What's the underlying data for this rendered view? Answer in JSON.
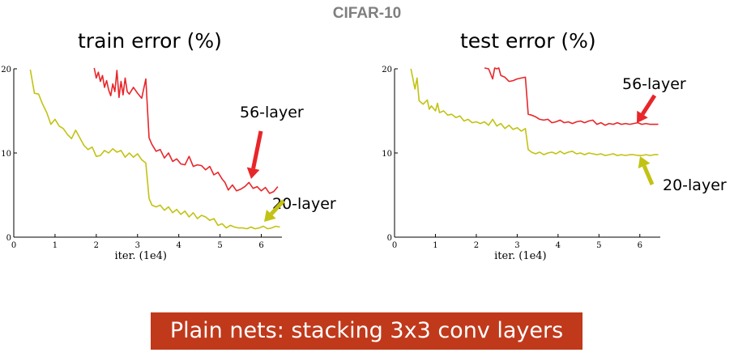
{
  "header": {
    "title": "CIFAR-10"
  },
  "banner": {
    "text": "Plain nets: stacking 3x3 conv layers"
  },
  "colors": {
    "red_series": "#e8262a",
    "olive_series": "#c2c213",
    "banner_bg": "#c0391b"
  },
  "chart_data": [
    {
      "type": "line",
      "title": "train error (%)",
      "xlabel": "iter. (1e4)",
      "ylabel": "",
      "xlim": [
        0,
        6.5
      ],
      "ylim": [
        0,
        20
      ],
      "xticks": [
        0,
        1,
        2,
        3,
        4,
        5,
        6
      ],
      "yticks": [
        0,
        10,
        20
      ],
      "grid": false,
      "series": [
        {
          "name": "56-layer",
          "color": "#e8262a",
          "points": [
            [
              1.95,
              20.1
            ],
            [
              2.0,
              18.9
            ],
            [
              2.05,
              19.6
            ],
            [
              2.1,
              18.5
            ],
            [
              2.15,
              19.2
            ],
            [
              2.2,
              17.8
            ],
            [
              2.25,
              18.6
            ],
            [
              2.3,
              17.5
            ],
            [
              2.35,
              16.8
            ],
            [
              2.4,
              18.2
            ],
            [
              2.45,
              17.3
            ],
            [
              2.5,
              19.8
            ],
            [
              2.55,
              16.6
            ],
            [
              2.6,
              18.5
            ],
            [
              2.65,
              16.9
            ],
            [
              2.7,
              18.9
            ],
            [
              2.75,
              17.3
            ],
            [
              2.8,
              17.0
            ],
            [
              2.9,
              17.8
            ],
            [
              3.0,
              17.1
            ],
            [
              3.1,
              16.5
            ],
            [
              3.2,
              18.8
            ],
            [
              3.28,
              11.8
            ],
            [
              3.35,
              11.0
            ],
            [
              3.45,
              10.2
            ],
            [
              3.55,
              10.4
            ],
            [
              3.65,
              9.4
            ],
            [
              3.75,
              10.0
            ],
            [
              3.85,
              9.0
            ],
            [
              3.95,
              9.3
            ],
            [
              4.05,
              8.7
            ],
            [
              4.15,
              8.6
            ],
            [
              4.25,
              9.6
            ],
            [
              4.35,
              8.4
            ],
            [
              4.45,
              8.6
            ],
            [
              4.55,
              8.5
            ],
            [
              4.65,
              8.0
            ],
            [
              4.75,
              8.4
            ],
            [
              4.85,
              7.4
            ],
            [
              4.95,
              7.7
            ],
            [
              5.05,
              6.9
            ],
            [
              5.12,
              6.5
            ],
            [
              5.2,
              5.6
            ],
            [
              5.3,
              6.2
            ],
            [
              5.4,
              5.5
            ],
            [
              5.5,
              5.7
            ],
            [
              5.6,
              6.0
            ],
            [
              5.7,
              6.5
            ],
            [
              5.8,
              5.8
            ],
            [
              5.9,
              6.0
            ],
            [
              6.0,
              5.5
            ],
            [
              6.1,
              5.9
            ],
            [
              6.2,
              5.2
            ],
            [
              6.3,
              5.4
            ],
            [
              6.4,
              6.0
            ]
          ]
        },
        {
          "name": "20-layer",
          "color": "#c2c213",
          "points": [
            [
              0.4,
              19.9
            ],
            [
              0.5,
              17.1
            ],
            [
              0.6,
              17.0
            ],
            [
              0.7,
              15.8
            ],
            [
              0.8,
              14.8
            ],
            [
              0.9,
              13.4
            ],
            [
              1.0,
              14.0
            ],
            [
              1.1,
              13.2
            ],
            [
              1.2,
              12.9
            ],
            [
              1.3,
              12.2
            ],
            [
              1.4,
              11.7
            ],
            [
              1.5,
              12.7
            ],
            [
              1.6,
              11.8
            ],
            [
              1.7,
              10.9
            ],
            [
              1.8,
              10.4
            ],
            [
              1.9,
              10.7
            ],
            [
              2.0,
              9.6
            ],
            [
              2.1,
              9.7
            ],
            [
              2.2,
              10.3
            ],
            [
              2.3,
              10.0
            ],
            [
              2.4,
              10.5
            ],
            [
              2.5,
              10.1
            ],
            [
              2.6,
              10.3
            ],
            [
              2.7,
              9.5
            ],
            [
              2.8,
              10.0
            ],
            [
              2.9,
              9.5
            ],
            [
              3.0,
              9.9
            ],
            [
              3.1,
              9.2
            ],
            [
              3.2,
              8.8
            ],
            [
              3.28,
              4.6
            ],
            [
              3.35,
              3.8
            ],
            [
              3.45,
              3.6
            ],
            [
              3.55,
              3.8
            ],
            [
              3.65,
              3.2
            ],
            [
              3.75,
              3.6
            ],
            [
              3.85,
              2.9
            ],
            [
              3.95,
              3.3
            ],
            [
              4.05,
              2.7
            ],
            [
              4.15,
              3.1
            ],
            [
              4.25,
              2.4
            ],
            [
              4.35,
              2.9
            ],
            [
              4.45,
              2.2
            ],
            [
              4.55,
              2.6
            ],
            [
              4.65,
              2.4
            ],
            [
              4.75,
              2.0
            ],
            [
              4.85,
              2.2
            ],
            [
              4.95,
              1.4
            ],
            [
              5.05,
              1.6
            ],
            [
              5.15,
              1.1
            ],
            [
              5.25,
              1.4
            ],
            [
              5.35,
              1.2
            ],
            [
              5.45,
              1.1
            ],
            [
              5.55,
              1.1
            ],
            [
              5.65,
              1.0
            ],
            [
              5.75,
              1.2
            ],
            [
              5.85,
              1.0
            ],
            [
              5.95,
              1.1
            ],
            [
              6.05,
              1.3
            ],
            [
              6.15,
              1.0
            ],
            [
              6.25,
              1.1
            ],
            [
              6.35,
              1.3
            ],
            [
              6.45,
              1.2
            ]
          ]
        }
      ],
      "annotations": [
        {
          "text": "56-layer",
          "color": "#e8262a",
          "target": [
            5.72,
            6.2
          ]
        },
        {
          "text": "20-layer",
          "color": "#c2c213",
          "target": [
            6.05,
            1.1
          ]
        }
      ]
    },
    {
      "type": "line",
      "title": "test error (%)",
      "xlabel": "iter. (1e4)",
      "ylabel": "",
      "xlim": [
        0,
        6.5
      ],
      "ylim": [
        0,
        20
      ],
      "xticks": [
        0,
        1,
        2,
        3,
        4,
        5,
        6
      ],
      "yticks": [
        0,
        10,
        20
      ],
      "grid": false,
      "series": [
        {
          "name": "56-layer",
          "color": "#e8262a",
          "points": [
            [
              2.2,
              20.1
            ],
            [
              2.3,
              20.0
            ],
            [
              2.4,
              18.8
            ],
            [
              2.45,
              20.1
            ],
            [
              2.5,
              20.0
            ],
            [
              2.55,
              20.1
            ],
            [
              2.6,
              19.2
            ],
            [
              2.7,
              19.0
            ],
            [
              2.8,
              18.5
            ],
            [
              2.9,
              18.6
            ],
            [
              3.0,
              18.8
            ],
            [
              3.1,
              18.9
            ],
            [
              3.2,
              19.0
            ],
            [
              3.27,
              14.6
            ],
            [
              3.35,
              14.5
            ],
            [
              3.45,
              14.3
            ],
            [
              3.55,
              14.0
            ],
            [
              3.65,
              13.9
            ],
            [
              3.75,
              14.0
            ],
            [
              3.85,
              13.6
            ],
            [
              3.95,
              13.7
            ],
            [
              4.05,
              13.9
            ],
            [
              4.15,
              13.6
            ],
            [
              4.25,
              13.7
            ],
            [
              4.35,
              13.5
            ],
            [
              4.45,
              13.7
            ],
            [
              4.55,
              13.8
            ],
            [
              4.65,
              13.6
            ],
            [
              4.75,
              13.8
            ],
            [
              4.85,
              13.9
            ],
            [
              4.95,
              13.4
            ],
            [
              5.05,
              13.6
            ],
            [
              5.15,
              13.3
            ],
            [
              5.25,
              13.5
            ],
            [
              5.35,
              13.4
            ],
            [
              5.45,
              13.6
            ],
            [
              5.55,
              13.4
            ],
            [
              5.65,
              13.5
            ],
            [
              5.75,
              13.4
            ],
            [
              5.85,
              13.5
            ],
            [
              5.95,
              13.6
            ],
            [
              6.05,
              13.4
            ],
            [
              6.15,
              13.5
            ],
            [
              6.25,
              13.4
            ],
            [
              6.35,
              13.4
            ],
            [
              6.45,
              13.4
            ]
          ]
        },
        {
          "name": "20-layer",
          "color": "#c2c213",
          "points": [
            [
              0.4,
              20.0
            ],
            [
              0.5,
              17.6
            ],
            [
              0.55,
              18.9
            ],
            [
              0.6,
              16.2
            ],
            [
              0.7,
              15.8
            ],
            [
              0.8,
              16.3
            ],
            [
              0.85,
              15.2
            ],
            [
              0.9,
              15.6
            ],
            [
              1.0,
              15.0
            ],
            [
              1.05,
              15.9
            ],
            [
              1.1,
              14.8
            ],
            [
              1.2,
              15.0
            ],
            [
              1.3,
              14.5
            ],
            [
              1.4,
              14.6
            ],
            [
              1.5,
              14.2
            ],
            [
              1.6,
              14.4
            ],
            [
              1.7,
              13.8
            ],
            [
              1.8,
              14.0
            ],
            [
              1.9,
              13.6
            ],
            [
              2.0,
              13.7
            ],
            [
              2.1,
              13.5
            ],
            [
              2.2,
              13.7
            ],
            [
              2.3,
              13.3
            ],
            [
              2.4,
              14.0
            ],
            [
              2.5,
              13.2
            ],
            [
              2.6,
              13.5
            ],
            [
              2.7,
              12.9
            ],
            [
              2.8,
              13.3
            ],
            [
              2.9,
              12.8
            ],
            [
              3.0,
              13.0
            ],
            [
              3.1,
              12.6
            ],
            [
              3.2,
              12.9
            ],
            [
              3.27,
              10.4
            ],
            [
              3.35,
              10.1
            ],
            [
              3.45,
              9.9
            ],
            [
              3.55,
              10.1
            ],
            [
              3.65,
              9.8
            ],
            [
              3.75,
              10.0
            ],
            [
              3.85,
              10.1
            ],
            [
              3.95,
              9.9
            ],
            [
              4.05,
              10.2
            ],
            [
              4.15,
              9.9
            ],
            [
              4.25,
              10.1
            ],
            [
              4.35,
              10.2
            ],
            [
              4.45,
              9.9
            ],
            [
              4.55,
              10.0
            ],
            [
              4.65,
              9.8
            ],
            [
              4.75,
              10.0
            ],
            [
              4.85,
              9.9
            ],
            [
              4.95,
              9.8
            ],
            [
              5.05,
              9.9
            ],
            [
              5.15,
              9.7
            ],
            [
              5.25,
              9.8
            ],
            [
              5.35,
              9.9
            ],
            [
              5.45,
              9.7
            ],
            [
              5.55,
              9.8
            ],
            [
              5.65,
              9.7
            ],
            [
              5.75,
              9.8
            ],
            [
              5.85,
              9.8
            ],
            [
              5.95,
              9.7
            ],
            [
              6.05,
              9.7
            ],
            [
              6.15,
              9.8
            ],
            [
              6.25,
              9.7
            ],
            [
              6.35,
              9.8
            ],
            [
              6.45,
              9.8
            ]
          ]
        }
      ],
      "annotations": [
        {
          "text": "56-layer",
          "color": "#e8262a",
          "target": [
            5.82,
            13.4
          ]
        },
        {
          "text": "20-layer",
          "color": "#c2c213",
          "target": [
            5.9,
            9.8
          ]
        }
      ]
    }
  ]
}
